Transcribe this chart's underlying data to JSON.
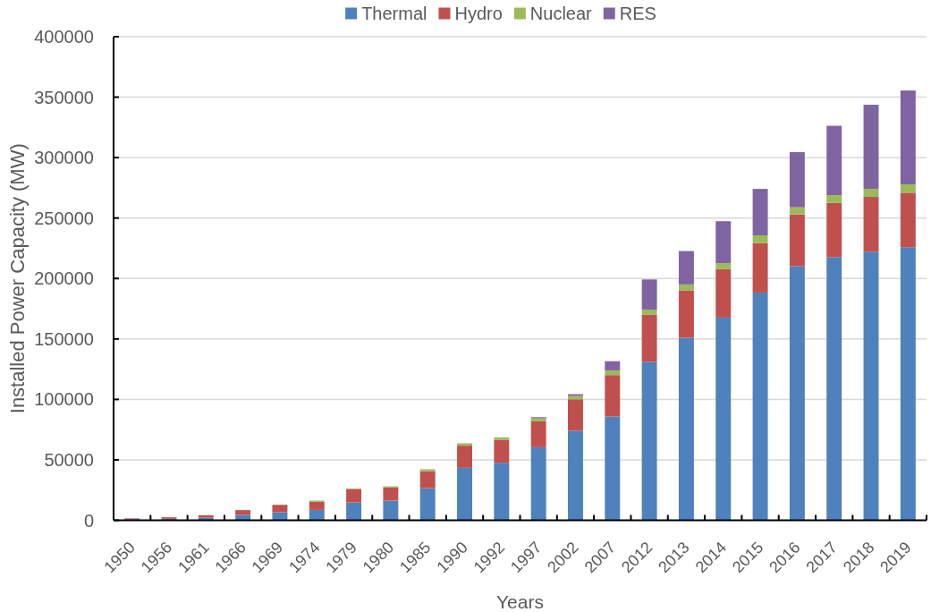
{
  "chart_data": {
    "type": "bar",
    "stacked": true,
    "xlabel": "Years",
    "ylabel": "Installed Power Capacity (MW)",
    "categories": [
      "1950",
      "1956",
      "1961",
      "1966",
      "1969",
      "1974",
      "1979",
      "1980",
      "1985",
      "1990",
      "1992",
      "1997",
      "2002",
      "2007",
      "2012",
      "2013",
      "2014",
      "2015",
      "2016",
      "2017",
      "2018",
      "2019"
    ],
    "series": [
      {
        "name": "Thermal",
        "color": "#4f81bd",
        "values": [
          1000,
          1200,
          2200,
          4400,
          6700,
          8600,
          14800,
          16300,
          26600,
          43400,
          47600,
          60400,
          74000,
          85800,
          131000,
          151000,
          167700,
          188400,
          210100,
          217700,
          222200,
          225900
        ]
      },
      {
        "name": "Hydro",
        "color": "#c0504d",
        "values": [
          600,
          1300,
          2000,
          4000,
          6100,
          6700,
          10900,
          10900,
          14100,
          18300,
          19000,
          21400,
          26100,
          34300,
          38900,
          39200,
          40100,
          40900,
          42900,
          44800,
          45300,
          45100
        ]
      },
      {
        "name": "Nuclear",
        "color": "#9bbb59",
        "values": [
          0,
          0,
          0,
          0,
          0,
          1000,
          700,
          900,
          1500,
          2000,
          2000,
          2500,
          2700,
          3900,
          4400,
          4900,
          4900,
          6400,
          5900,
          6400,
          6700,
          6900
        ]
      },
      {
        "name": "RES",
        "color": "#8064a2",
        "values": [
          0,
          0,
          0,
          0,
          0,
          0,
          0,
          0,
          0,
          0,
          0,
          1000,
          1500,
          7600,
          24900,
          27600,
          34700,
          38400,
          45600,
          57400,
          69500,
          77600
        ]
      }
    ],
    "ylim": [
      0,
      400000
    ],
    "yticks": [
      0,
      50000,
      100000,
      150000,
      200000,
      250000,
      300000,
      350000,
      400000
    ],
    "grid": "y",
    "legend": "top"
  }
}
